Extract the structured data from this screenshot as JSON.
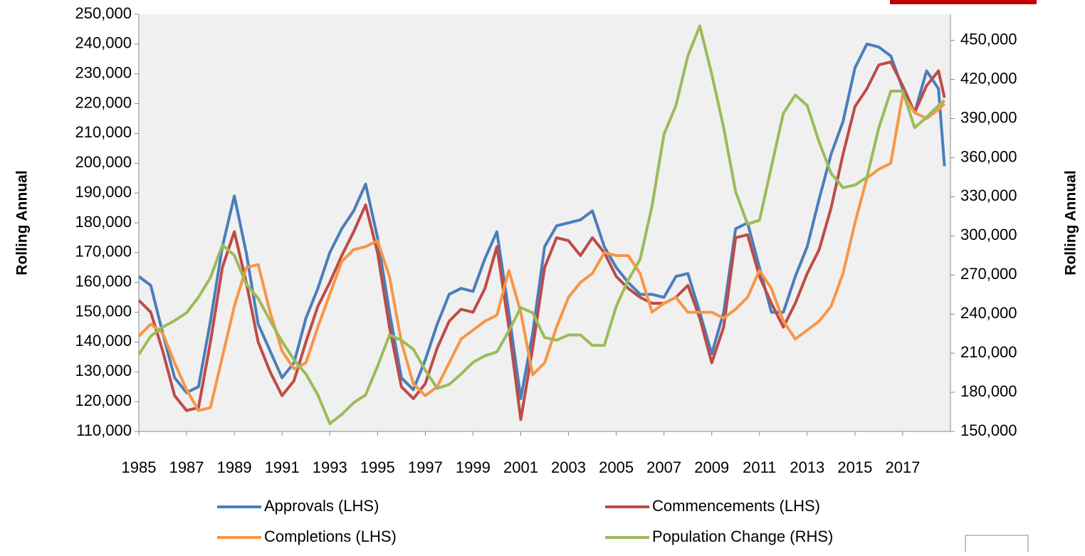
{
  "chart_data": {
    "type": "line",
    "y_label": "Rolling Annual",
    "y2_label": "Rolling Annual",
    "x": [
      1985,
      1985.5,
      1986,
      1986.5,
      1987,
      1987.5,
      1988,
      1988.5,
      1989,
      1989.5,
      1990,
      1990.5,
      1991,
      1991.5,
      1992,
      1992.5,
      1993,
      1993.5,
      1994,
      1994.5,
      1995,
      1995.5,
      1996,
      1996.5,
      1997,
      1997.5,
      1998,
      1998.5,
      1999,
      1999.5,
      2000,
      2000.5,
      2001,
      2001.5,
      2002,
      2002.5,
      2003,
      2003.5,
      2004,
      2004.5,
      2005,
      2005.5,
      2006,
      2006.5,
      2007,
      2007.5,
      2008,
      2008.5,
      2009,
      2009.5,
      2010,
      2010.5,
      2011,
      2011.5,
      2012,
      2012.5,
      2013,
      2013.5,
      2014,
      2014.5,
      2015,
      2015.5,
      2016,
      2016.5,
      2017,
      2017.5,
      2018,
      2018.5,
      2018.75
    ],
    "xlim": [
      1985,
      2019
    ],
    "xticks": [
      1985,
      1987,
      1989,
      1991,
      1993,
      1995,
      1997,
      1999,
      2001,
      2003,
      2005,
      2007,
      2009,
      2011,
      2013,
      2015,
      2017
    ],
    "ylim": [
      110000,
      250000
    ],
    "yticks": [
      {
        "value": 110000,
        "label": "110,000"
      },
      {
        "value": 120000,
        "label": "120,000"
      },
      {
        "value": 130000,
        "label": "130,000"
      },
      {
        "value": 140000,
        "label": "140,000"
      },
      {
        "value": 150000,
        "label": "150,000"
      },
      {
        "value": 160000,
        "label": "160,000"
      },
      {
        "value": 170000,
        "label": "170,000"
      },
      {
        "value": 180000,
        "label": "180,000"
      },
      {
        "value": 190000,
        "label": "190,000"
      },
      {
        "value": 200000,
        "label": "200,000"
      },
      {
        "value": 210000,
        "label": "210,000"
      },
      {
        "value": 220000,
        "label": "220,000"
      },
      {
        "value": 230000,
        "label": "230,000"
      },
      {
        "value": 240000,
        "label": "240,000"
      },
      {
        "value": 250000,
        "label": "250,000"
      }
    ],
    "y2lim": [
      150000,
      470000
    ],
    "y2ticks": [
      {
        "value": 150000,
        "label": "150,000"
      },
      {
        "value": 180000,
        "label": "180,000"
      },
      {
        "value": 210000,
        "label": "210,000"
      },
      {
        "value": 240000,
        "label": "240,000"
      },
      {
        "value": 270000,
        "label": "270,000"
      },
      {
        "value": 300000,
        "label": "300,000"
      },
      {
        "value": 330000,
        "label": "330,000"
      },
      {
        "value": 360000,
        "label": "360,000"
      },
      {
        "value": 390000,
        "label": "390,000"
      },
      {
        "value": 420000,
        "label": "420,000"
      },
      {
        "value": 450000,
        "label": "450,000"
      }
    ],
    "grid": false,
    "legend": "bottom",
    "series": [
      {
        "name": "Approvals (LHS)",
        "color": "#4a7ebb",
        "values": [
          162000,
          159000,
          143000,
          128000,
          123000,
          125000,
          147000,
          172000,
          189000,
          170000,
          146000,
          137000,
          128000,
          133000,
          148000,
          158000,
          170000,
          178000,
          184000,
          193000,
          175000,
          150000,
          128000,
          124000,
          134000,
          146000,
          156000,
          158000,
          157000,
          168000,
          177000,
          150000,
          121000,
          143000,
          172000,
          179000,
          180000,
          181000,
          184000,
          172000,
          165000,
          160000,
          156000,
          156000,
          155000,
          162000,
          163000,
          150000,
          136000,
          150000,
          178000,
          180000,
          165000,
          150000,
          150000,
          162000,
          172000,
          188000,
          203000,
          214000,
          232000,
          240000,
          239000,
          236000,
          225000,
          217000,
          231000,
          225000,
          199000
        ]
      },
      {
        "name": "Commencements (LHS)",
        "color": "#be4b48",
        "values": [
          154000,
          150000,
          137000,
          122000,
          117000,
          118000,
          140000,
          165000,
          177000,
          160000,
          140000,
          130000,
          122000,
          127000,
          140000,
          152000,
          160000,
          169000,
          177000,
          186000,
          170000,
          145000,
          125000,
          121000,
          126000,
          138000,
          147000,
          151000,
          150000,
          158000,
          172000,
          145000,
          114000,
          138000,
          165000,
          175000,
          174000,
          169000,
          175000,
          170000,
          162000,
          158000,
          155000,
          153000,
          153000,
          155000,
          159000,
          148000,
          133000,
          145000,
          175000,
          176000,
          162000,
          153000,
          145000,
          153000,
          163000,
          171000,
          185000,
          203000,
          219000,
          225000,
          233000,
          234000,
          226000,
          217000,
          226000,
          231000,
          222000
        ]
      },
      {
        "name": "Completions (LHS)",
        "color": "#f79646",
        "values": [
          142000,
          146000,
          143000,
          133000,
          124000,
          117000,
          118000,
          135000,
          152000,
          165000,
          166000,
          150000,
          137000,
          131000,
          133000,
          145000,
          156000,
          167000,
          171000,
          172000,
          174000,
          162000,
          140000,
          126000,
          122000,
          125000,
          133000,
          141000,
          144000,
          147000,
          149000,
          164000,
          150000,
          129000,
          133000,
          145000,
          155000,
          160000,
          163000,
          170000,
          169000,
          169000,
          163000,
          150000,
          153000,
          155000,
          150000,
          150000,
          150000,
          148000,
          151000,
          155000,
          164000,
          158000,
          147000,
          141000,
          144000,
          147000,
          152000,
          163000,
          180000,
          195000,
          198000,
          200000,
          223000,
          217000,
          215000,
          218000,
          220000
        ]
      },
      {
        "name": "Population Change (RHS)",
        "color": "#9bbb59",
        "axis": "y2",
        "values": [
          209000,
          223000,
          230000,
          235000,
          241000,
          253000,
          268000,
          293000,
          285000,
          263000,
          252000,
          235000,
          219000,
          205000,
          194000,
          178000,
          156000,
          163000,
          172000,
          178000,
          200000,
          224000,
          220000,
          213000,
          197000,
          183000,
          186000,
          194000,
          203000,
          208000,
          211000,
          227000,
          245000,
          241000,
          222000,
          220000,
          224000,
          224000,
          216000,
          216000,
          246000,
          266000,
          282000,
          323000,
          378000,
          400000,
          438000,
          461000,
          424000,
          383000,
          334000,
          309000,
          312000,
          353000,
          394000,
          408000,
          400000,
          372000,
          348000,
          337000,
          339000,
          345000,
          383000,
          411000,
          411000,
          383000,
          391000,
          400000,
          404000
        ]
      }
    ]
  }
}
